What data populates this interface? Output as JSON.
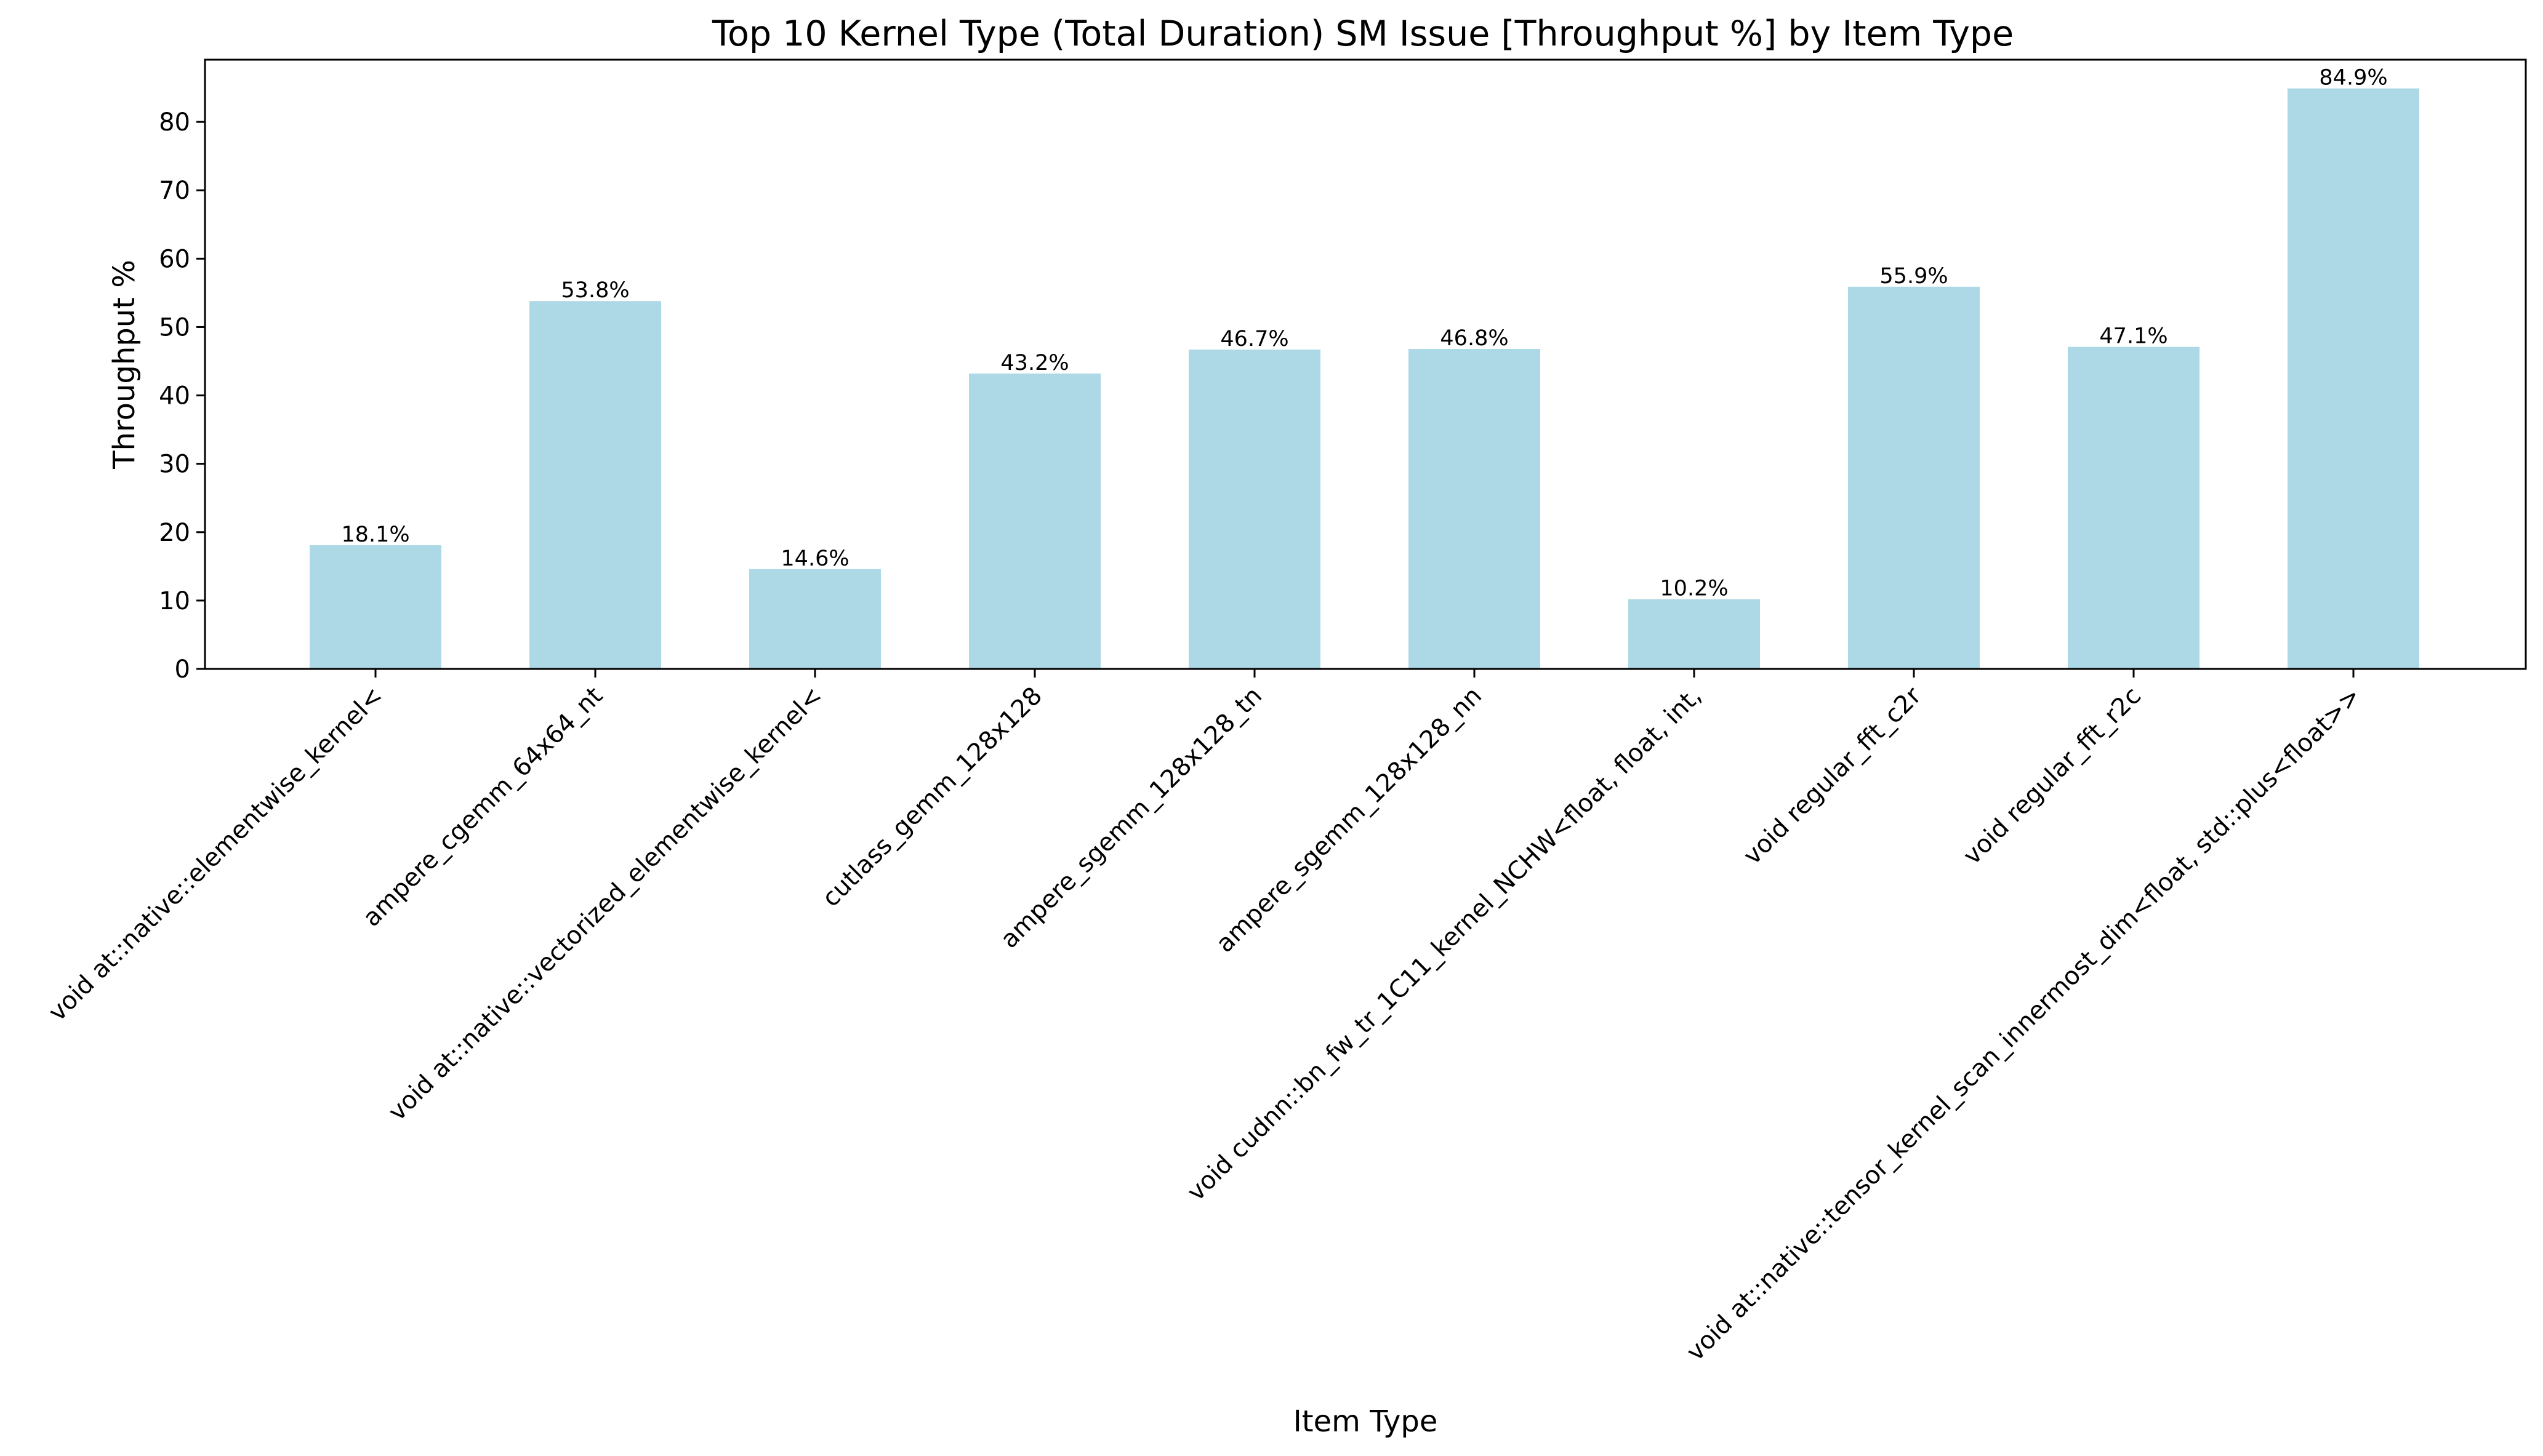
{
  "chart_data": {
    "type": "bar",
    "title": "Top 10 Kernel Type (Total Duration) SM Issue [Throughput %] by Item Type",
    "xlabel": "Item Type",
    "ylabel": "Throughput %",
    "categories": [
      "void at::native::elementwise_kernel<",
      "ampere_cgemm_64x64_nt",
      "void at::native::vectorized_elementwise_kernel<",
      "cutlass_gemm_128x128",
      "ampere_sgemm_128x128_tn",
      "ampere_sgemm_128x128_nn",
      "void cudnn::bn_fw_tr_1C11_kernel_NCHW<float, float, int,",
      "void regular_fft_c2r",
      "void regular_fft_r2c",
      "void at::native::tensor_kernel_scan_innermost_dim<float, std::plus<float>>"
    ],
    "values": [
      18.1,
      53.8,
      14.6,
      43.2,
      46.7,
      46.8,
      10.2,
      55.9,
      47.1,
      84.9
    ],
    "value_labels": [
      "18.1%",
      "53.8%",
      "14.6%",
      "43.2%",
      "46.7%",
      "46.8%",
      "10.2%",
      "55.9%",
      "47.1%",
      "84.9%"
    ],
    "yticks": [
      "0",
      "10",
      "20",
      "30",
      "40",
      "50",
      "60",
      "70",
      "80"
    ],
    "ylim": [
      0,
      89.1
    ],
    "bar_color": "#add8e6",
    "grid": false,
    "legend": "none"
  }
}
